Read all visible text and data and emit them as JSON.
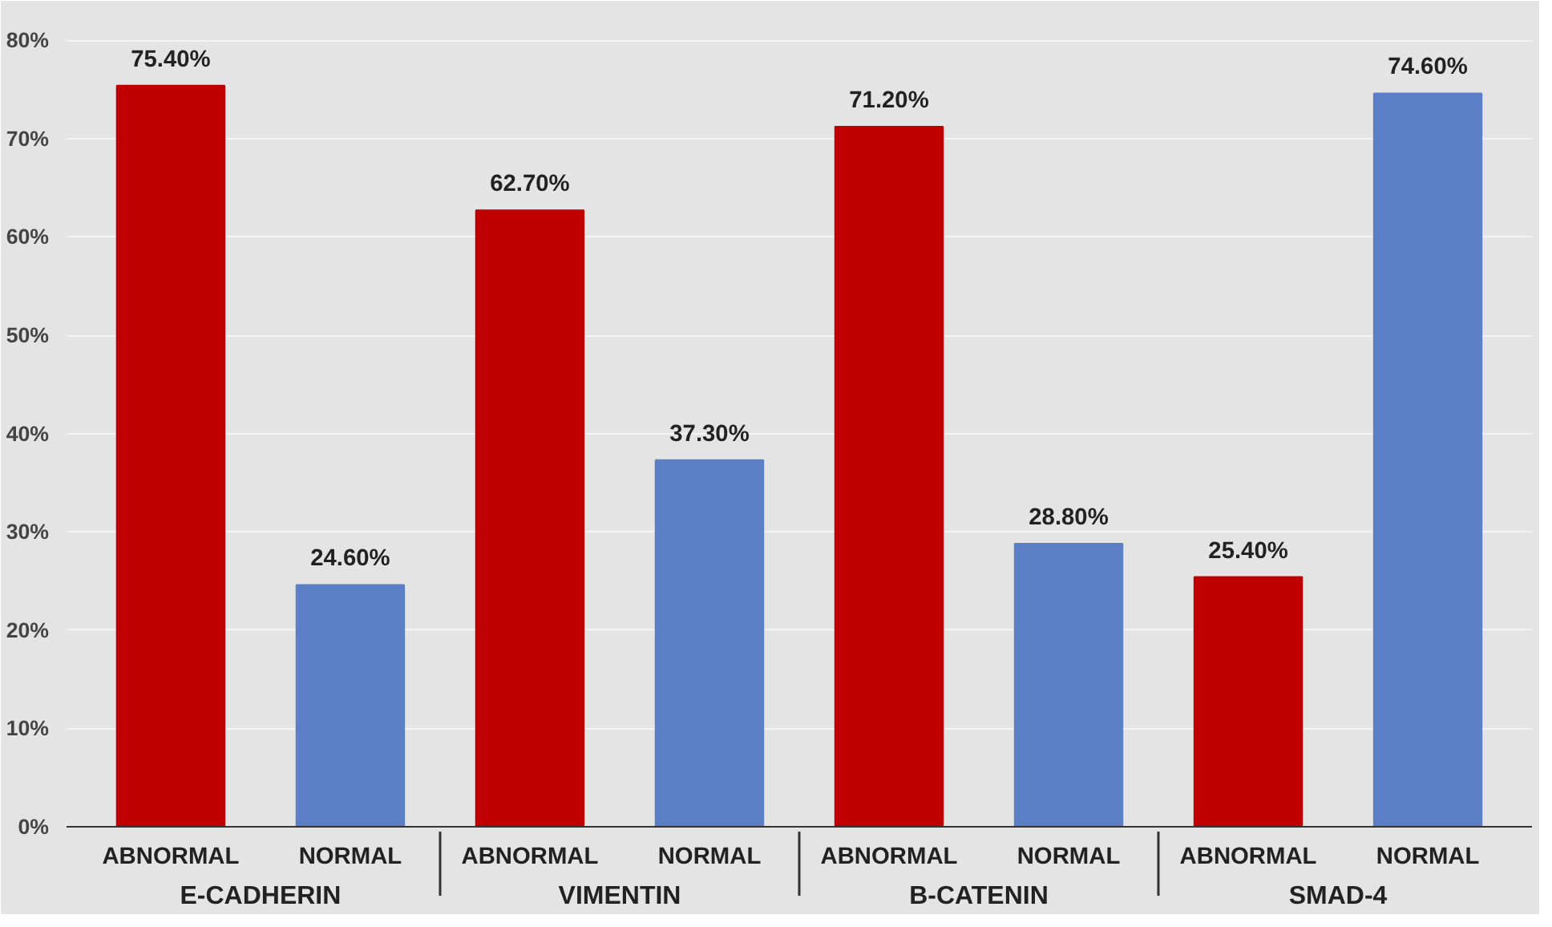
{
  "chart_data": {
    "type": "bar",
    "categories": [
      "ABNORMAL",
      "NORMAL",
      "ABNORMAL",
      "NORMAL",
      "ABNORMAL",
      "NORMAL",
      "ABNORMAL",
      "NORMAL"
    ],
    "values": [
      75.4,
      24.6,
      62.7,
      37.3,
      71.2,
      28.8,
      25.4,
      74.6
    ],
    "value_labels": [
      "75.40%",
      "24.60%",
      "62.70%",
      "37.30%",
      "71.20%",
      "28.80%",
      "25.40%",
      "74.60%"
    ],
    "colors": [
      "#c00000",
      "#5b7fc7",
      "#c00000",
      "#5b7fc7",
      "#c00000",
      "#5b7fc7",
      "#c00000",
      "#5b7fc7"
    ],
    "annotations": [
      "E-CADHERIN",
      "VIMENTIN",
      "B-CATENIN",
      "SMAD-4"
    ],
    "ylim": [
      0,
      80
    ],
    "yticks": [
      {
        "value": 0,
        "label": "0%"
      },
      {
        "value": 10,
        "label": "10%"
      },
      {
        "value": 20,
        "label": "20%"
      },
      {
        "value": 30,
        "label": "30%"
      },
      {
        "value": 40,
        "label": "40%"
      },
      {
        "value": 50,
        "label": "50%"
      },
      {
        "value": 60,
        "label": "60%"
      },
      {
        "value": 70,
        "label": "70%"
      },
      {
        "value": 80,
        "label": "80%"
      }
    ],
    "grid": "y"
  }
}
